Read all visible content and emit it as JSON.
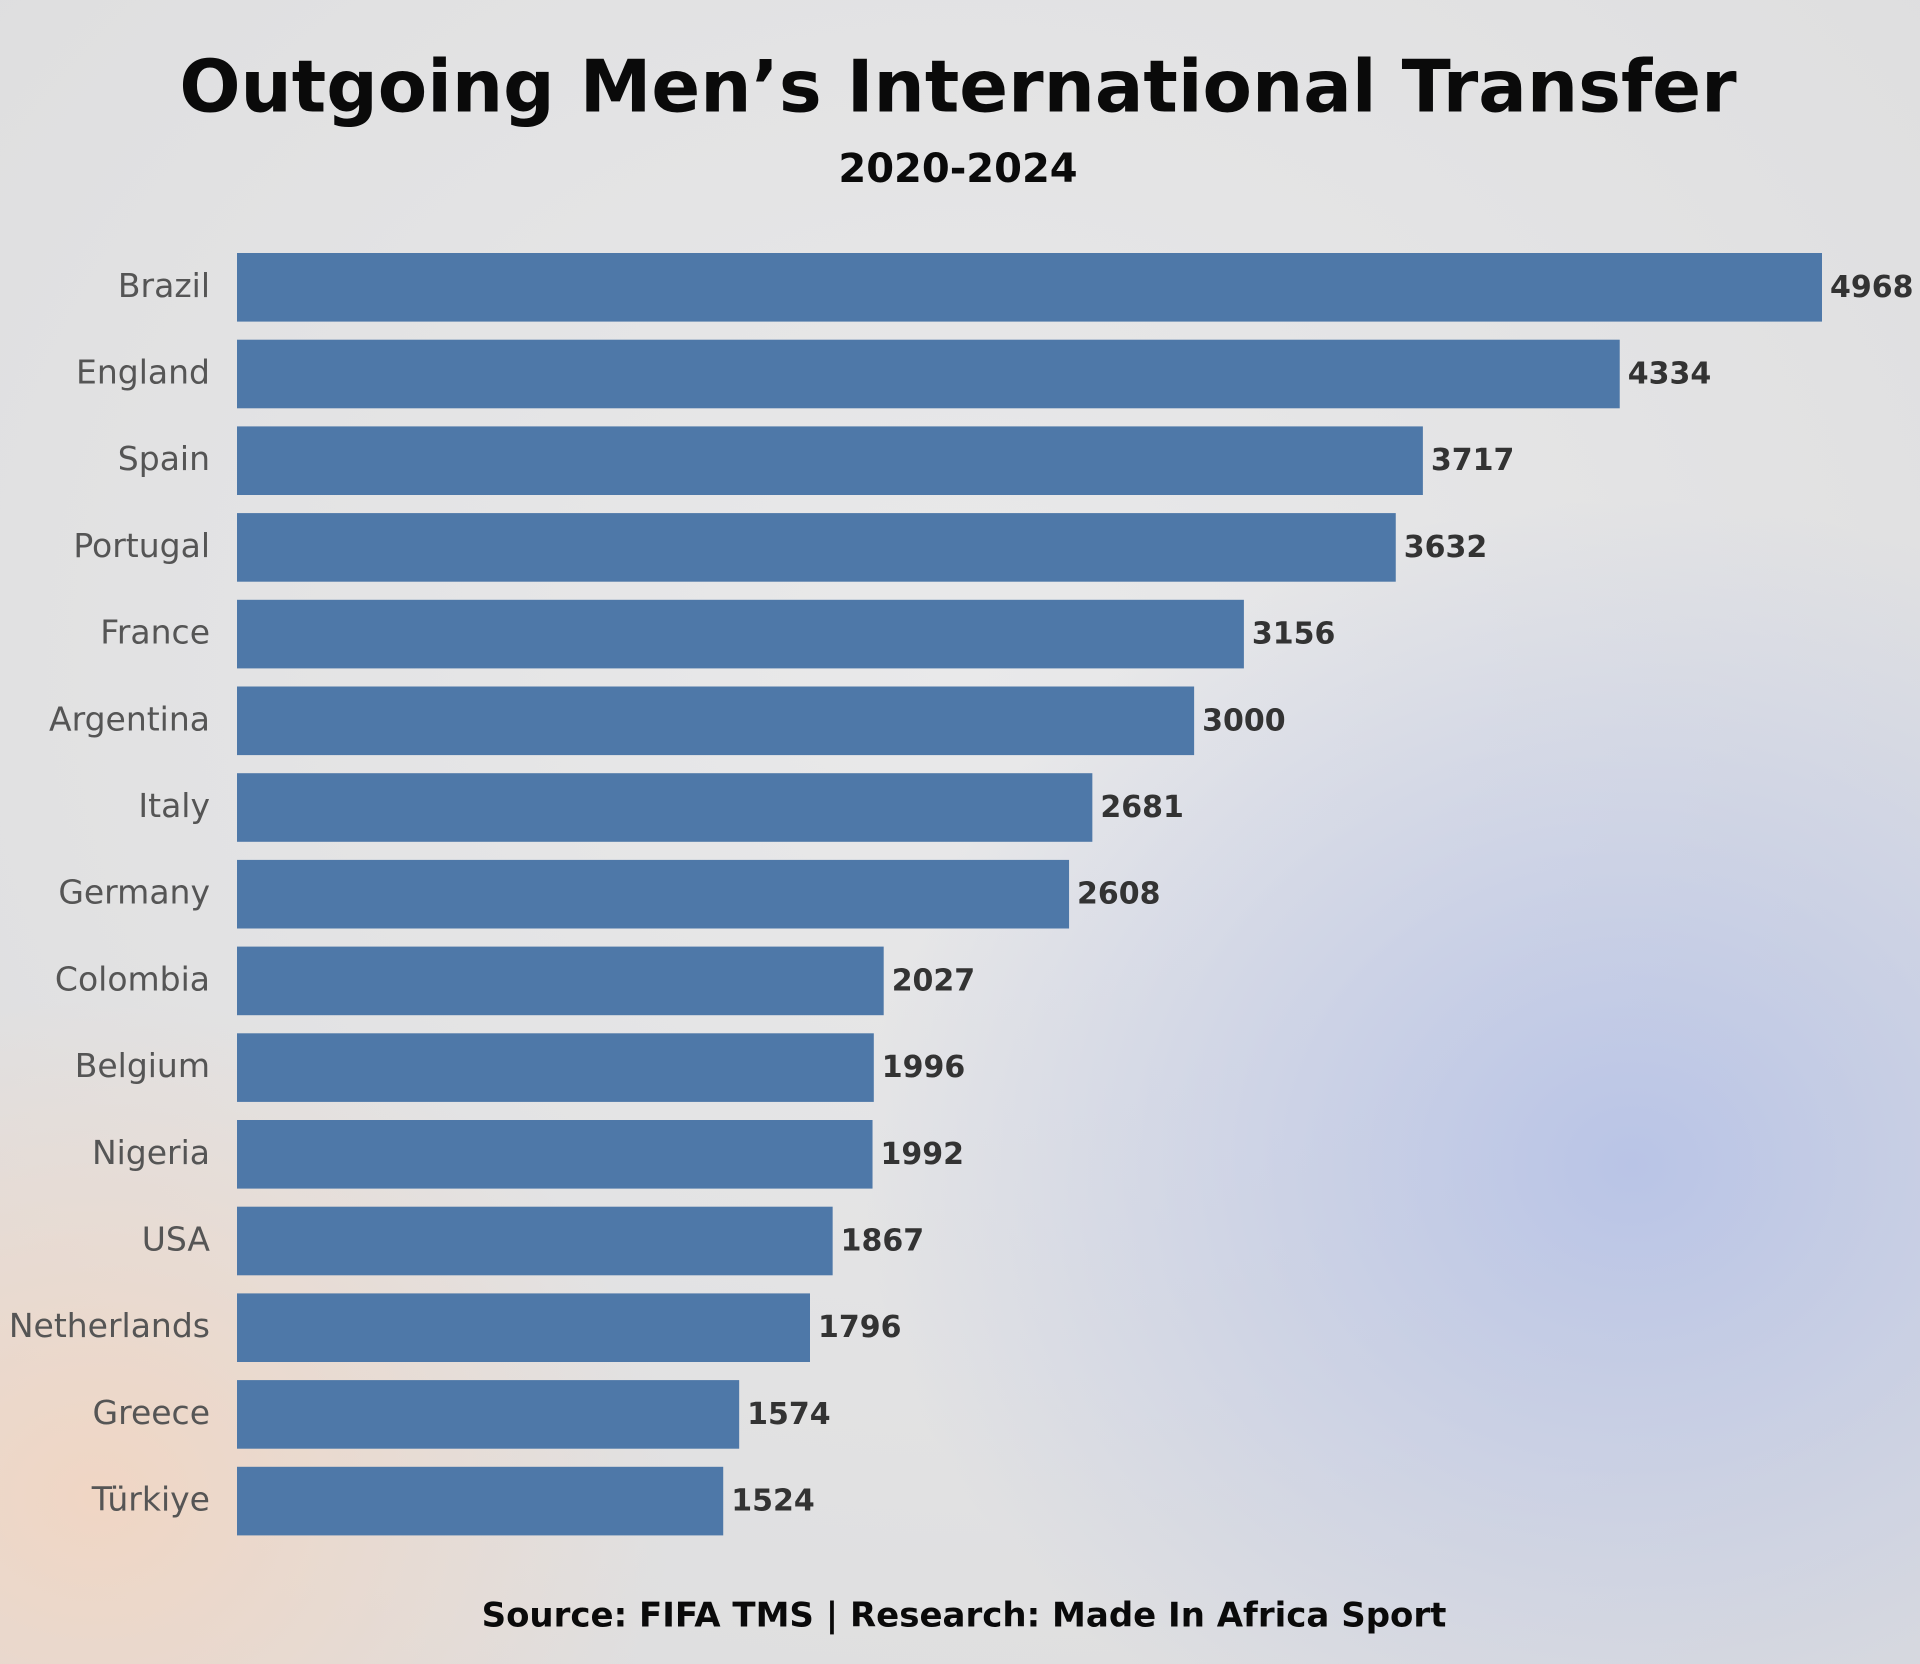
{
  "chart_data": {
    "type": "bar",
    "orientation": "horizontal",
    "title": "Outgoing Men’s International Transfer",
    "subtitle": "2020-2024",
    "categories": [
      "Brazil",
      "England",
      "Spain",
      "Portugal",
      "France",
      "Argentina",
      "Italy",
      "Germany",
      "Colombia",
      "Belgium",
      "Nigeria",
      "USA",
      "Netherlands",
      "Greece",
      "Türkiye"
    ],
    "values": [
      4968,
      4334,
      3717,
      3632,
      3156,
      3000,
      2681,
      2608,
      2027,
      1996,
      1992,
      1867,
      1796,
      1574,
      1524
    ],
    "color": "#4e78a8",
    "source": "Source: FIFA TMS | Research: Made In Africa Sport"
  }
}
